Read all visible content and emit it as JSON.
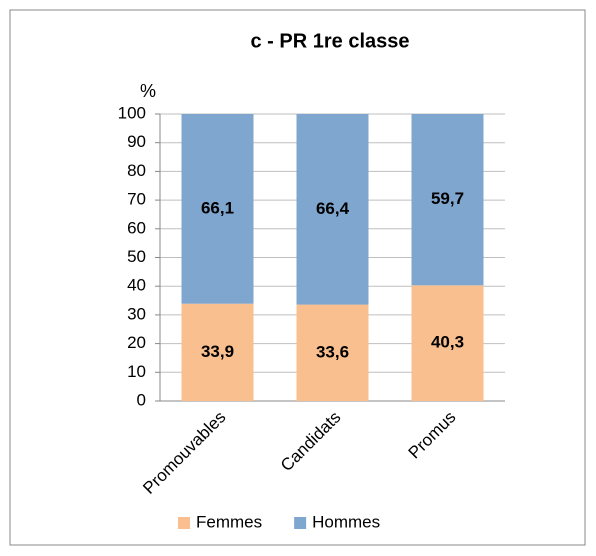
{
  "chart_data": {
    "type": "stacked_bar",
    "title": "c - PR 1re classe",
    "y_label": "%",
    "categories": [
      "Promouvables",
      "Candidats",
      "Promus"
    ],
    "series": [
      {
        "name": "Femmes",
        "color": "#f9bf8f",
        "values": [
          33.9,
          33.6,
          40.3
        ],
        "value_labels": [
          "33,9",
          "33,6",
          "40,3"
        ]
      },
      {
        "name": "Hommes",
        "color": "#7fa6cf",
        "values": [
          66.1,
          66.4,
          59.7
        ],
        "value_labels": [
          "66,1",
          "66,4",
          "59,7"
        ]
      }
    ],
    "ylim": [
      0,
      100
    ],
    "yticks": [
      0,
      10,
      20,
      30,
      40,
      50,
      60,
      70,
      80,
      90,
      100
    ],
    "grid": true,
    "legend": "bottom"
  }
}
